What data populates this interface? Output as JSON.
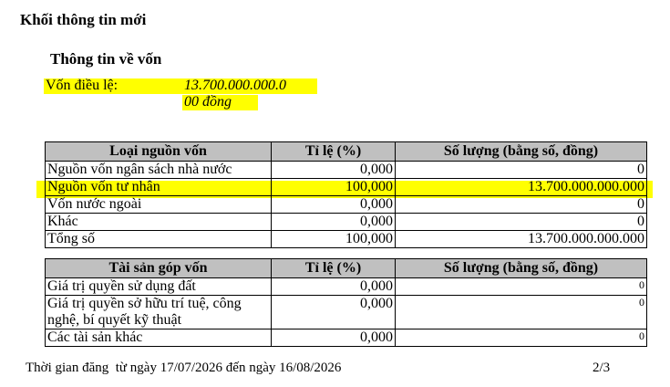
{
  "header": {
    "title": "Khối thông tin mới",
    "section": "Thông tin về vốn"
  },
  "charter": {
    "label": "Vốn điều lệ:",
    "value_line1": "13.700.000.000.0",
    "value_line2": "00 đồng"
  },
  "capital_table": {
    "columns": [
      "Loại nguồn vốn",
      "Tỉ lệ (%)",
      "Số lượng (bằng số, đồng)"
    ],
    "rows": [
      [
        "Nguồn vốn ngân sách nhà nước",
        "0,000",
        "0"
      ],
      [
        "Nguồn vốn tư nhân",
        "100,000",
        "13.700.000.000.000"
      ],
      [
        "Vốn nước ngoài",
        "0,000",
        "0"
      ],
      [
        "Khác",
        "0,000",
        "0"
      ],
      [
        "Tổng số",
        "100,000",
        "13.700.000.000.000"
      ]
    ]
  },
  "asset_table": {
    "columns": [
      "Tài sản góp vốn",
      "Tỉ lệ (%)",
      "Số lượng (bằng số, đồng)"
    ],
    "rows": [
      [
        "Giá trị quyền sử dụng đất",
        "0,000",
        "0"
      ],
      [
        "Giá trị quyền sở hữu trí tuệ, công nghệ, bí quyết kỹ thuật",
        "0,000",
        "0"
      ],
      [
        "Các tài sản khác",
        "0,000",
        "0"
      ]
    ]
  },
  "footer": {
    "period": "Thời gian đăng  từ ngày 17/07/2026 đến ngày 16/08/2026",
    "page": "2/3"
  }
}
